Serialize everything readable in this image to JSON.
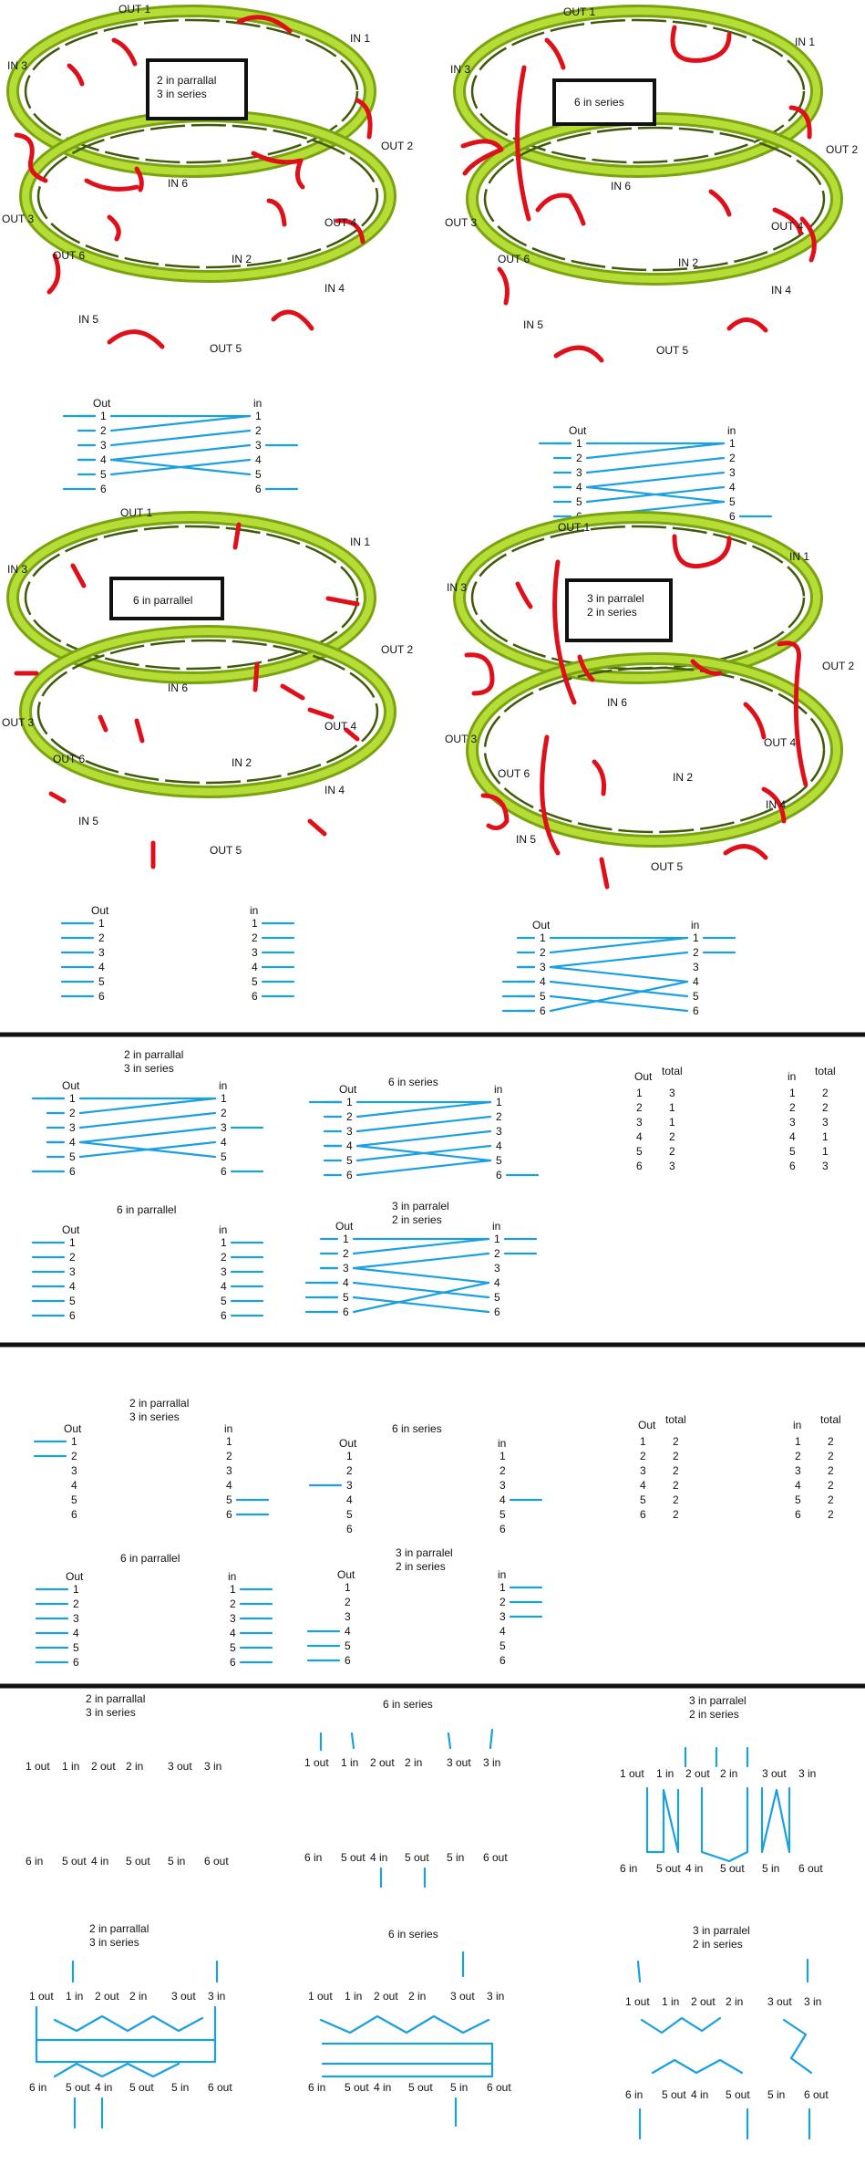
{
  "rings": {
    "labels": [
      "OUT 1",
      "IN 1",
      "IN 3",
      "OUT 2",
      "IN 6",
      "OUT 3",
      "OUT 4",
      "OUT 6",
      "IN 2",
      "IN 4",
      "IN 5",
      "OUT 5"
    ]
  },
  "configs": {
    "c1": "2 in parrallal\n3 in series",
    "c2": "6 in series",
    "c3": "6 in parrallel",
    "c4": "3 in parralel\n2 in series"
  },
  "table": {
    "out_header": "Out",
    "in_header": "in",
    "total_header": "total",
    "numbers": [
      "1",
      "2",
      "3",
      "4",
      "5",
      "6"
    ],
    "out_totals": [
      "3",
      "1",
      "1",
      "2",
      "2",
      "3"
    ],
    "in_totals": [
      "2",
      "2",
      "3",
      "1",
      "1",
      "3"
    ],
    "out_totals_b": [
      "2",
      "2",
      "2",
      "2",
      "2",
      "2"
    ],
    "in_totals_b": [
      "2",
      "2",
      "2",
      "2",
      "2",
      "2"
    ]
  },
  "terminals": {
    "top": [
      "1 out",
      "1 in",
      "2 out",
      "2 in",
      "3 out",
      "3 in"
    ],
    "bottom": [
      "6 in",
      "5 out",
      "4 in",
      "5 out",
      "5 in",
      "6 out"
    ]
  },
  "colors": {
    "ring": "#7aa312",
    "wire_red": "#e0101a",
    "wire_blue": "#1aa0e0"
  }
}
